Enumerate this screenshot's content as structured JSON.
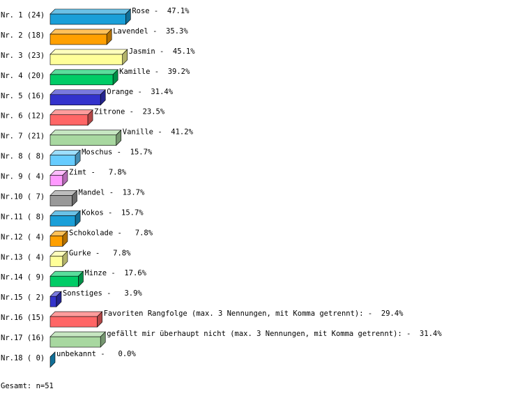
{
  "chart_data": {
    "type": "bar3d",
    "categories": [
      "Nr. 1 (24)",
      "Nr. 2 (18)",
      "Nr. 3 (23)",
      "Nr. 4 (20)",
      "Nr. 5 (16)",
      "Nr. 6 (12)",
      "Nr. 7 (21)",
      "Nr. 8 ( 8)",
      "Nr. 9 ( 4)",
      "Nr.10 ( 7)",
      "Nr.11 ( 8)",
      "Nr.12 ( 4)",
      "Nr.13 ( 4)",
      "Nr.14 ( 9)",
      "Nr.15 ( 2)",
      "Nr.16 (15)",
      "Nr.17 (16)",
      "Nr.18 ( 0)"
    ],
    "values": [
      47.1,
      35.3,
      45.1,
      39.2,
      31.4,
      23.5,
      41.2,
      15.7,
      7.8,
      13.7,
      15.7,
      7.8,
      7.8,
      17.6,
      3.9,
      29.4,
      31.4,
      0.0
    ],
    "value_labels": [
      "Rose -  47.1%",
      "Lavendel -  35.3%",
      "Jasmin -  45.1%",
      "Kamille -  39.2%",
      "Orange -  31.4%",
      "Zitrone -  23.5%",
      "Vanille -  41.2%",
      "Moschus -  15.7%",
      "Zimt -   7.8%",
      "Mandel -  13.7%",
      "Kokos -  15.7%",
      "Schokolade -   7.8%",
      "Gurke -   7.8%",
      "Minze -  17.6%",
      "Sonstiges -   3.9%",
      "Favoriten Rangfolge (max. 3 Nennungen, mit Komma getrennt): -  29.4%",
      "gefällt mir überhaupt nicht (max. 3 Nennungen, mit Komma getrennt): -  31.4%",
      "unbekannt -   0.0%"
    ],
    "colors": [
      "#1a9fd8",
      "#ffa000",
      "#ffff99",
      "#00cc66",
      "#3333cc",
      "#ff6666",
      "#a8d8a0",
      "#66ccff",
      "#ff99ff",
      "#999999",
      "#1a9fd8",
      "#ffa000",
      "#ffff99",
      "#00cc66",
      "#3333cc",
      "#ff6666",
      "#a8d8a0",
      "#1a9fd8"
    ],
    "footer": "Gesamt: n=51"
  }
}
